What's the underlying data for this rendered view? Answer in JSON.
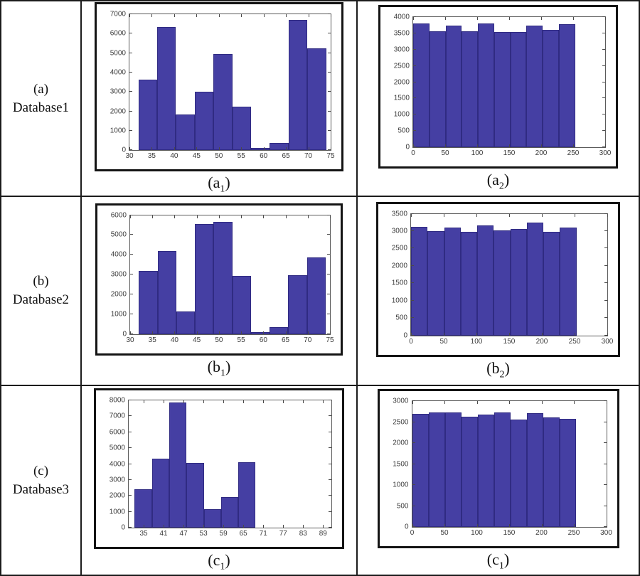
{
  "figure": {
    "bar_face_color": "#453fa3",
    "bar_edge_color": "#302b82",
    "rows": [
      {
        "label_lines": [
          "(a)",
          "Database1"
        ]
      },
      {
        "label_lines": [
          "(b)",
          "Database2"
        ]
      },
      {
        "label_lines": [
          "(c)",
          "Database3"
        ]
      }
    ]
  },
  "chart_data": [
    {
      "type": "bar",
      "caption_prefix": "(a",
      "caption_sub": "1",
      "caption_suffix": ")",
      "xlim": [
        30,
        75
      ],
      "ylim": [
        0,
        7000
      ],
      "xticks": [
        30,
        35,
        40,
        45,
        50,
        55,
        60,
        65,
        70,
        75
      ],
      "yticks": [
        0,
        1000,
        2000,
        3000,
        4000,
        5000,
        6000,
        7000
      ],
      "bin_start": 32,
      "bin_width": 4.2,
      "values": [
        3650,
        6360,
        1820,
        3020,
        4940,
        2230,
        110,
        360,
        6710,
        5260
      ],
      "title": "",
      "xlabel": "",
      "ylabel": "",
      "grid": false,
      "legend": null
    },
    {
      "type": "bar",
      "caption_prefix": "(a",
      "caption_sub": "2",
      "caption_suffix": ")",
      "xlim": [
        0,
        300
      ],
      "ylim": [
        0,
        4000
      ],
      "xticks": [
        0,
        50,
        100,
        150,
        200,
        250,
        300
      ],
      "yticks": [
        0,
        500,
        1000,
        1500,
        2000,
        2500,
        3000,
        3500,
        4000
      ],
      "bin_start": 0,
      "bin_width": 25.3,
      "values": [
        3810,
        3570,
        3745,
        3555,
        3805,
        3550,
        3550,
        3730,
        3615,
        3775
      ],
      "title": "",
      "xlabel": "",
      "ylabel": "",
      "grid": false,
      "legend": null
    },
    {
      "type": "bar",
      "caption_prefix": "(b",
      "caption_sub": "1",
      "caption_suffix": ")",
      "xlim": [
        30,
        75
      ],
      "ylim": [
        0,
        6000
      ],
      "xticks": [
        30,
        35,
        40,
        45,
        50,
        55,
        60,
        65,
        70,
        75
      ],
      "yticks": [
        0,
        1000,
        2000,
        3000,
        4000,
        5000,
        6000
      ],
      "bin_start": 32,
      "bin_width": 4.2,
      "values": [
        3190,
        4195,
        1130,
        5550,
        5650,
        2930,
        90,
        345,
        2960,
        3880
      ],
      "title": "",
      "xlabel": "",
      "ylabel": "",
      "grid": false,
      "legend": null
    },
    {
      "type": "bar",
      "caption_prefix": "(b",
      "caption_sub": "2",
      "caption_suffix": ")",
      "xlim": [
        0,
        300
      ],
      "ylim": [
        0,
        3500
      ],
      "xticks": [
        0,
        50,
        100,
        150,
        200,
        250,
        300
      ],
      "yticks": [
        0,
        500,
        1000,
        1500,
        2000,
        2500,
        3000,
        3500
      ],
      "bin_start": 0,
      "bin_width": 25.3,
      "values": [
        3130,
        3000,
        3110,
        2980,
        3170,
        3020,
        3070,
        3250,
        2980,
        3100
      ],
      "title": "",
      "xlabel": "",
      "ylabel": "",
      "grid": false,
      "legend": null
    },
    {
      "type": "bar",
      "caption_prefix": "(c",
      "caption_sub": "1",
      "caption_suffix": ")",
      "xlim": [
        30.5,
        91.5
      ],
      "ylim": [
        0,
        8000
      ],
      "xticks": [
        35,
        41,
        47,
        53,
        59,
        65,
        71,
        77,
        83,
        89
      ],
      "yticks": [
        0,
        1000,
        2000,
        3000,
        4000,
        5000,
        6000,
        7000,
        8000
      ],
      "bin_start": 32.3,
      "bin_width": 5.2,
      "values": [
        2400,
        4345,
        7865,
        4080,
        1185,
        1915,
        4135
      ],
      "title": "",
      "xlabel": "",
      "ylabel": "",
      "grid": false,
      "legend": null
    },
    {
      "type": "bar",
      "caption_prefix": "(c",
      "caption_sub": "1",
      "caption_suffix": ")",
      "xlim": [
        0,
        300
      ],
      "ylim": [
        0,
        3000
      ],
      "xticks": [
        0,
        50,
        100,
        150,
        200,
        250,
        300
      ],
      "yticks": [
        0,
        500,
        1000,
        1500,
        2000,
        2500,
        3000
      ],
      "bin_start": 0,
      "bin_width": 25.3,
      "values": [
        2690,
        2725,
        2735,
        2630,
        2680,
        2725,
        2565,
        2710,
        2615,
        2575
      ],
      "title": "",
      "xlabel": "",
      "ylabel": "",
      "grid": false,
      "legend": null
    }
  ]
}
